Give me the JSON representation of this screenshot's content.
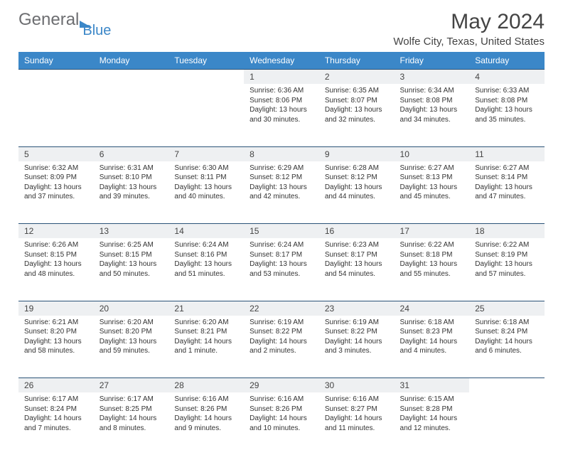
{
  "logo": {
    "text1": "General",
    "text2": "Blue"
  },
  "title": "May 2024",
  "location": "Wolfe City, Texas, United States",
  "colors": {
    "header_bg": "#3b87c8",
    "header_text": "#ffffff",
    "daynum_bg": "#eef0f2",
    "rule": "#2b5378",
    "logo_gray": "#6d6e71",
    "logo_blue": "#3b87c8"
  },
  "weekdays": [
    "Sunday",
    "Monday",
    "Tuesday",
    "Wednesday",
    "Thursday",
    "Friday",
    "Saturday"
  ],
  "weeks": [
    [
      null,
      null,
      null,
      {
        "n": "1",
        "sr": "6:36 AM",
        "ss": "8:06 PM",
        "dl": "13 hours and 30 minutes."
      },
      {
        "n": "2",
        "sr": "6:35 AM",
        "ss": "8:07 PM",
        "dl": "13 hours and 32 minutes."
      },
      {
        "n": "3",
        "sr": "6:34 AM",
        "ss": "8:08 PM",
        "dl": "13 hours and 34 minutes."
      },
      {
        "n": "4",
        "sr": "6:33 AM",
        "ss": "8:08 PM",
        "dl": "13 hours and 35 minutes."
      }
    ],
    [
      {
        "n": "5",
        "sr": "6:32 AM",
        "ss": "8:09 PM",
        "dl": "13 hours and 37 minutes."
      },
      {
        "n": "6",
        "sr": "6:31 AM",
        "ss": "8:10 PM",
        "dl": "13 hours and 39 minutes."
      },
      {
        "n": "7",
        "sr": "6:30 AM",
        "ss": "8:11 PM",
        "dl": "13 hours and 40 minutes."
      },
      {
        "n": "8",
        "sr": "6:29 AM",
        "ss": "8:12 PM",
        "dl": "13 hours and 42 minutes."
      },
      {
        "n": "9",
        "sr": "6:28 AM",
        "ss": "8:12 PM",
        "dl": "13 hours and 44 minutes."
      },
      {
        "n": "10",
        "sr": "6:27 AM",
        "ss": "8:13 PM",
        "dl": "13 hours and 45 minutes."
      },
      {
        "n": "11",
        "sr": "6:27 AM",
        "ss": "8:14 PM",
        "dl": "13 hours and 47 minutes."
      }
    ],
    [
      {
        "n": "12",
        "sr": "6:26 AM",
        "ss": "8:15 PM",
        "dl": "13 hours and 48 minutes."
      },
      {
        "n": "13",
        "sr": "6:25 AM",
        "ss": "8:15 PM",
        "dl": "13 hours and 50 minutes."
      },
      {
        "n": "14",
        "sr": "6:24 AM",
        "ss": "8:16 PM",
        "dl": "13 hours and 51 minutes."
      },
      {
        "n": "15",
        "sr": "6:24 AM",
        "ss": "8:17 PM",
        "dl": "13 hours and 53 minutes."
      },
      {
        "n": "16",
        "sr": "6:23 AM",
        "ss": "8:17 PM",
        "dl": "13 hours and 54 minutes."
      },
      {
        "n": "17",
        "sr": "6:22 AM",
        "ss": "8:18 PM",
        "dl": "13 hours and 55 minutes."
      },
      {
        "n": "18",
        "sr": "6:22 AM",
        "ss": "8:19 PM",
        "dl": "13 hours and 57 minutes."
      }
    ],
    [
      {
        "n": "19",
        "sr": "6:21 AM",
        "ss": "8:20 PM",
        "dl": "13 hours and 58 minutes."
      },
      {
        "n": "20",
        "sr": "6:20 AM",
        "ss": "8:20 PM",
        "dl": "13 hours and 59 minutes."
      },
      {
        "n": "21",
        "sr": "6:20 AM",
        "ss": "8:21 PM",
        "dl": "14 hours and 1 minute."
      },
      {
        "n": "22",
        "sr": "6:19 AM",
        "ss": "8:22 PM",
        "dl": "14 hours and 2 minutes."
      },
      {
        "n": "23",
        "sr": "6:19 AM",
        "ss": "8:22 PM",
        "dl": "14 hours and 3 minutes."
      },
      {
        "n": "24",
        "sr": "6:18 AM",
        "ss": "8:23 PM",
        "dl": "14 hours and 4 minutes."
      },
      {
        "n": "25",
        "sr": "6:18 AM",
        "ss": "8:24 PM",
        "dl": "14 hours and 6 minutes."
      }
    ],
    [
      {
        "n": "26",
        "sr": "6:17 AM",
        "ss": "8:24 PM",
        "dl": "14 hours and 7 minutes."
      },
      {
        "n": "27",
        "sr": "6:17 AM",
        "ss": "8:25 PM",
        "dl": "14 hours and 8 minutes."
      },
      {
        "n": "28",
        "sr": "6:16 AM",
        "ss": "8:26 PM",
        "dl": "14 hours and 9 minutes."
      },
      {
        "n": "29",
        "sr": "6:16 AM",
        "ss": "8:26 PM",
        "dl": "14 hours and 10 minutes."
      },
      {
        "n": "30",
        "sr": "6:16 AM",
        "ss": "8:27 PM",
        "dl": "14 hours and 11 minutes."
      },
      {
        "n": "31",
        "sr": "6:15 AM",
        "ss": "8:28 PM",
        "dl": "14 hours and 12 minutes."
      },
      null
    ]
  ],
  "labels": {
    "sunrise": "Sunrise: ",
    "sunset": "Sunset: ",
    "daylight": "Daylight: "
  }
}
